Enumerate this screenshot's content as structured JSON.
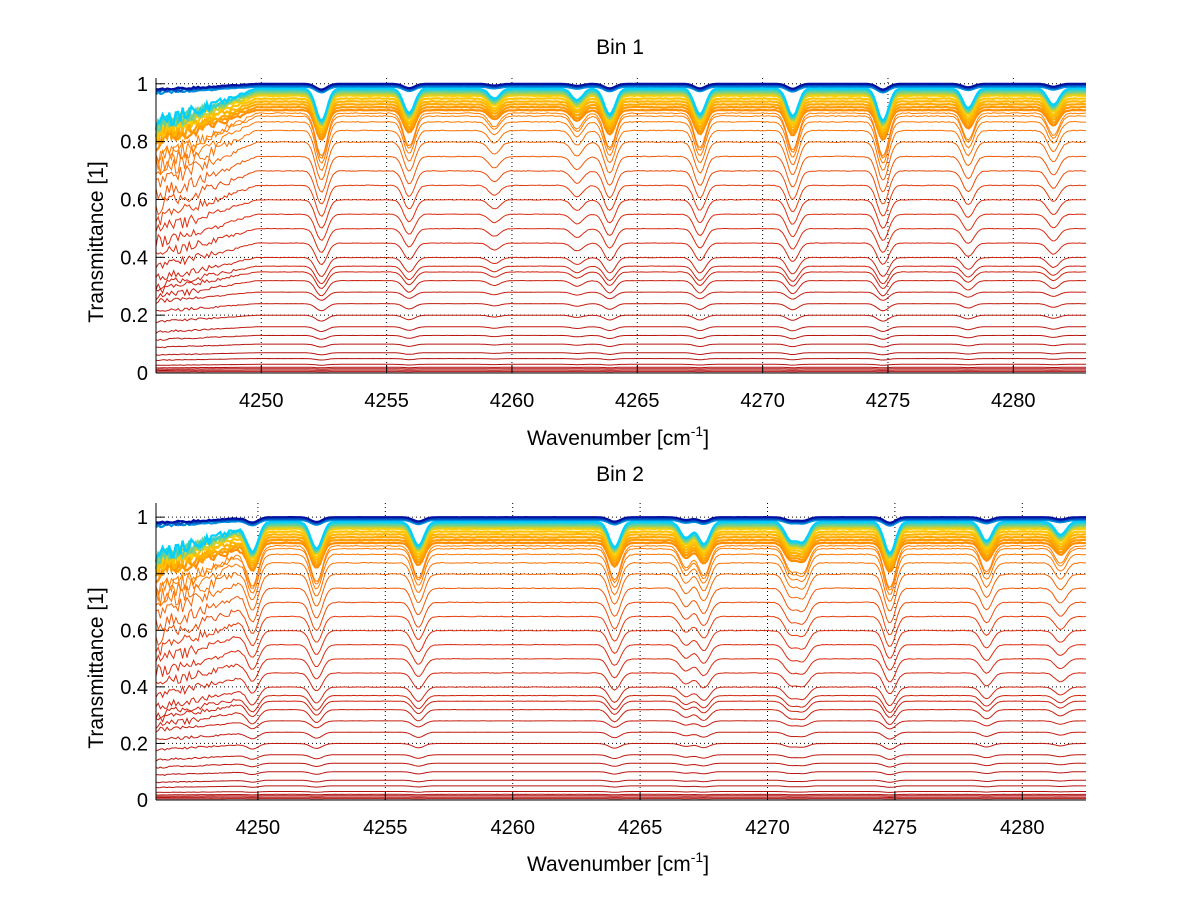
{
  "chart_data": [
    {
      "type": "line",
      "title": "Bin 1",
      "xlabel_main": "Wavenumber [cm",
      "xlabel_sup": "-1",
      "xlabel_end": "]",
      "ylabel": "Transmittance [1]",
      "xlim": [
        4245.8,
        4282.9
      ],
      "ylim": [
        0,
        1.02
      ],
      "xticks": [
        4250,
        4255,
        4260,
        4265,
        4270,
        4275,
        4280
      ],
      "yticks": [
        0,
        0.2,
        0.4,
        0.6,
        0.8,
        1
      ],
      "ytick_labels": [
        "0",
        "0.2",
        "0.4",
        "0.6",
        "0.8",
        "1"
      ],
      "grid": true,
      "absorption_lines": [
        {
          "x": 4252.4,
          "depth": 1.0
        },
        {
          "x": 4255.9,
          "depth": 0.75
        },
        {
          "x": 4259.3,
          "depth": 0.3
        },
        {
          "x": 4262.6,
          "depth": 0.35
        },
        {
          "x": 4263.9,
          "depth": 0.8
        },
        {
          "x": 4267.5,
          "depth": 0.8
        },
        {
          "x": 4271.2,
          "depth": 0.85
        },
        {
          "x": 4274.8,
          "depth": 1.0
        },
        {
          "x": 4278.2,
          "depth": 0.6
        },
        {
          "x": 4281.6,
          "depth": 0.5
        }
      ],
      "series_levels": [
        0.0,
        0.005,
        0.01,
        0.015,
        0.02,
        0.03,
        0.05,
        0.07,
        0.1,
        0.13,
        0.16,
        0.2,
        0.24,
        0.28,
        0.32,
        0.35,
        0.37,
        0.4,
        0.45,
        0.5,
        0.55,
        0.6,
        0.65,
        0.7,
        0.75,
        0.8,
        0.84,
        0.87,
        0.89,
        0.9,
        0.91,
        0.92,
        0.93,
        0.94,
        0.95,
        0.96,
        0.965,
        0.97,
        0.975,
        0.98,
        0.985,
        0.99,
        0.995,
        1.0
      ]
    },
    {
      "type": "line",
      "title": "Bin 2",
      "xlabel_main": "Wavenumber [cm",
      "xlabel_sup": "-1",
      "xlabel_end": "]",
      "ylabel": "Transmittance [1]",
      "xlim": [
        4246.0,
        4282.5
      ],
      "ylim": [
        0,
        1.05
      ],
      "xticks": [
        4250,
        4255,
        4260,
        4265,
        4270,
        4275,
        4280
      ],
      "yticks": [
        0,
        0.2,
        0.4,
        0.6,
        0.8,
        1
      ],
      "ytick_labels": [
        "0",
        "0.2",
        "0.4",
        "0.6",
        "0.8",
        "1"
      ],
      "grid": true,
      "absorption_lines": [
        {
          "x": 4249.8,
          "depth": 0.9
        },
        {
          "x": 4252.3,
          "depth": 0.85
        },
        {
          "x": 4256.3,
          "depth": 0.75
        },
        {
          "x": 4264.0,
          "depth": 0.8
        },
        {
          "x": 4266.8,
          "depth": 0.5
        },
        {
          "x": 4267.5,
          "depth": 0.7
        },
        {
          "x": 4270.9,
          "depth": 0.55
        },
        {
          "x": 4271.4,
          "depth": 0.6
        },
        {
          "x": 4274.8,
          "depth": 1.0
        },
        {
          "x": 4278.6,
          "depth": 0.6
        },
        {
          "x": 4281.5,
          "depth": 0.4
        }
      ],
      "series_levels": [
        0.0,
        0.005,
        0.01,
        0.015,
        0.02,
        0.03,
        0.05,
        0.07,
        0.1,
        0.13,
        0.16,
        0.2,
        0.24,
        0.28,
        0.32,
        0.35,
        0.37,
        0.4,
        0.45,
        0.5,
        0.55,
        0.6,
        0.65,
        0.7,
        0.75,
        0.8,
        0.84,
        0.87,
        0.89,
        0.9,
        0.91,
        0.92,
        0.93,
        0.94,
        0.95,
        0.96,
        0.965,
        0.97,
        0.975,
        0.98,
        0.985,
        0.99,
        0.995,
        1.0
      ]
    }
  ],
  "colors": {
    "low": "#b01010",
    "mid_low": "#e03010",
    "mid": "#ff8000",
    "mid_high": "#ffd000",
    "cyan": "#00d0ff",
    "high": "#0010a0",
    "grid": "#000000",
    "axis": "#000000"
  }
}
